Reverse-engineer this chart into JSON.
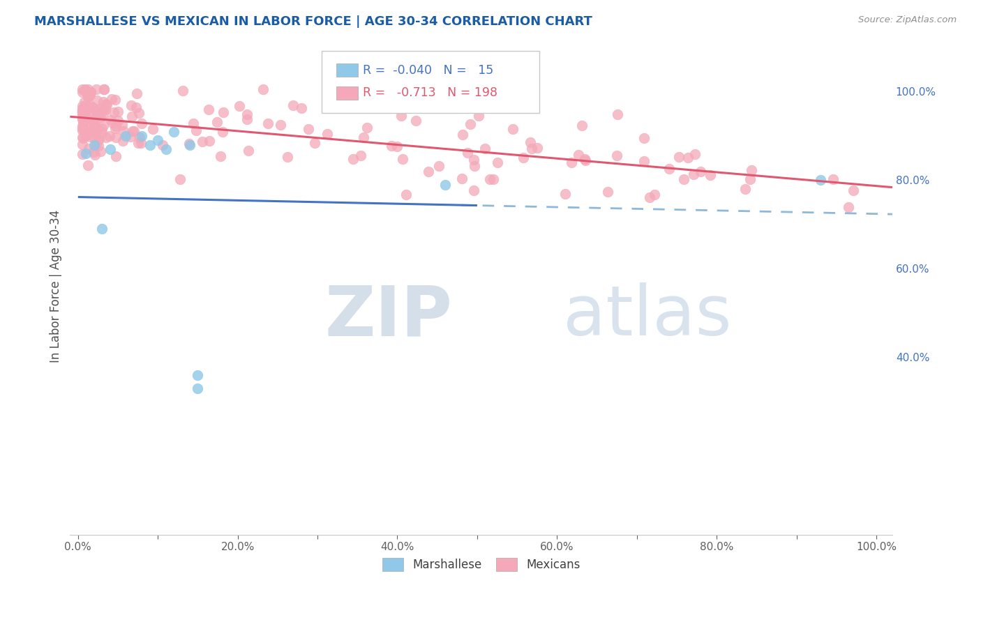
{
  "title": "MARSHALLESE VS MEXICAN IN LABOR FORCE | AGE 30-34 CORRELATION CHART",
  "source": "Source: ZipAtlas.com",
  "ylabel": "In Labor Force | Age 30-34",
  "xlim": [
    -0.01,
    1.02
  ],
  "ylim": [
    0.0,
    1.12
  ],
  "right_yticks": [
    0.4,
    0.6,
    0.8,
    1.0
  ],
  "right_yticklabels": [
    "40.0%",
    "60.0%",
    "80.0%",
    "100.0%"
  ],
  "xtick_labels": [
    "0.0%",
    "",
    "20.0%",
    "",
    "40.0%",
    "",
    "60.0%",
    "",
    "80.0%",
    "",
    "100.0%"
  ],
  "xtick_positions": [
    0.0,
    0.1,
    0.2,
    0.3,
    0.4,
    0.5,
    0.6,
    0.7,
    0.8,
    0.9,
    1.0
  ],
  "marshallese_color": "#90c8e8",
  "mexican_color": "#f4a8b8",
  "marshallese_R": -0.04,
  "marshallese_N": 15,
  "mexican_R": -0.713,
  "mexican_N": 198,
  "marshallese_line_color": "#4472c4",
  "mexican_line_color": "#e05870",
  "dashed_line_color": "#90b8d8",
  "watermark_zip": "ZIP",
  "watermark_atlas": "atlas",
  "legend_text1": "R =  -0.040   N =   15",
  "legend_text2": "R =   -0.713   N = 198",
  "background_color": "#ffffff",
  "grid_color": "#d8d8d8",
  "title_color": "#1a5ca8",
  "axis_label_color": "#505050",
  "right_axis_color": "#4472c4",
  "mex_line_intercept": 0.942,
  "mex_line_slope": -0.155,
  "mars_line_intercept": 0.762,
  "mars_line_slope": -0.038,
  "mars_dashed_intercept": 0.762,
  "mars_dashed_slope": -0.038
}
